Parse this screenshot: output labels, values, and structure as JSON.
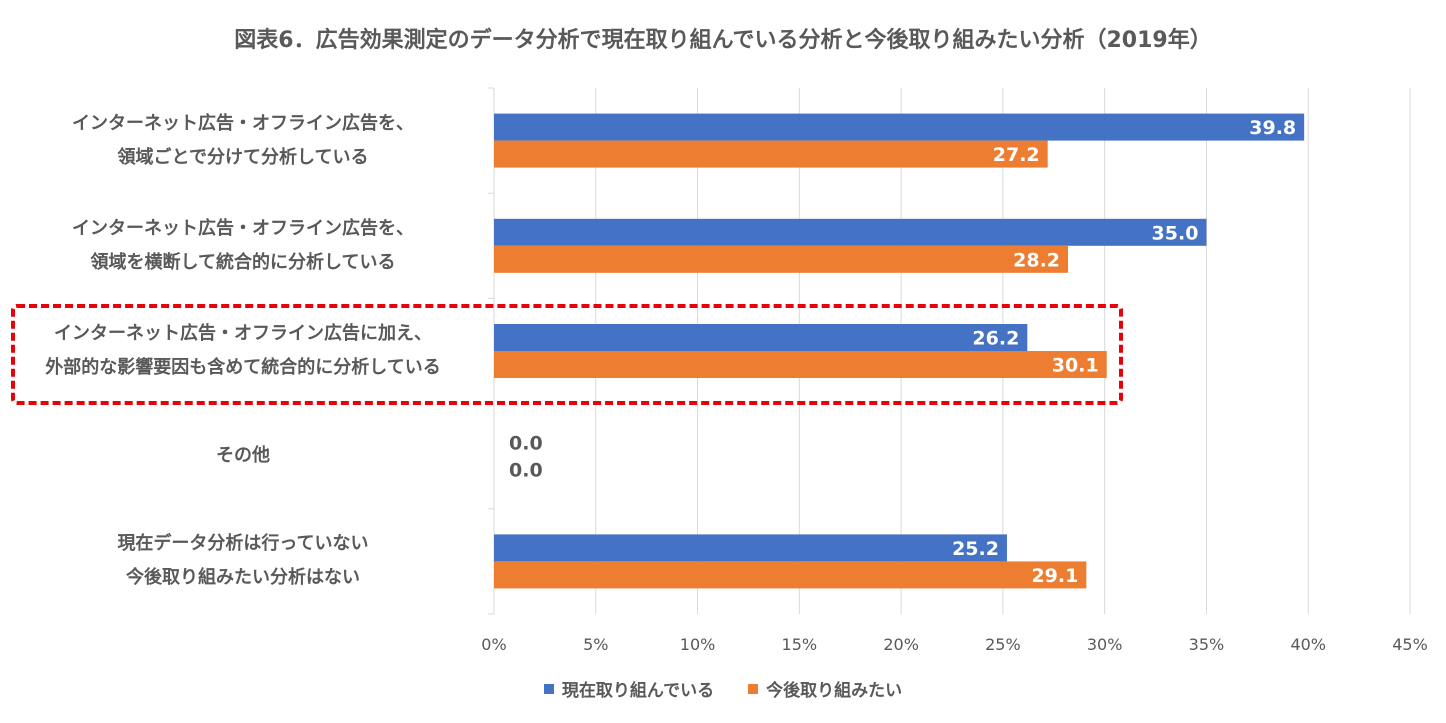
{
  "chart_data": {
    "type": "bar",
    "orientation": "horizontal",
    "title": "図表6．広告効果測定のデータ分析で現在取り組んでいる分析と今後取り組みたい分析（2019年）",
    "categories": [
      [
        "インターネット広告・オフライン広告を、",
        "領域ごとで分けて分析している"
      ],
      [
        "インターネット広告・オフライン広告を、",
        "領域を横断して統合的に分析している"
      ],
      [
        "インターネット広告・オフライン広告に加え、",
        "外部的な影響要因も含めて統合的に分析している"
      ],
      [
        "その他"
      ],
      [
        "現在データ分析は行っていない",
        "今後取り組みたい分析はない"
      ]
    ],
    "series": [
      {
        "name": "現在取り組んでいる",
        "color": "#4472c4",
        "values": [
          39.8,
          35.0,
          26.2,
          0.0,
          25.2
        ],
        "labels": [
          "39.8",
          "35.0",
          "26.2",
          "0.0",
          "25.2"
        ]
      },
      {
        "name": "今後取り組みたい",
        "color": "#ed7d31",
        "values": [
          27.2,
          28.2,
          30.1,
          0.0,
          29.1
        ],
        "labels": [
          "27.2",
          "28.2",
          "30.1",
          "0.0",
          "29.1"
        ]
      }
    ],
    "xlim": [
      0,
      45
    ],
    "xticks": [
      "0%",
      "5%",
      "10%",
      "15%",
      "20%",
      "25%",
      "30%",
      "35%",
      "40%",
      "45%"
    ],
    "grid": "vertical",
    "legend": "bottom-center",
    "highlighted_category": 2,
    "highlight_color": "#e8000b"
  }
}
